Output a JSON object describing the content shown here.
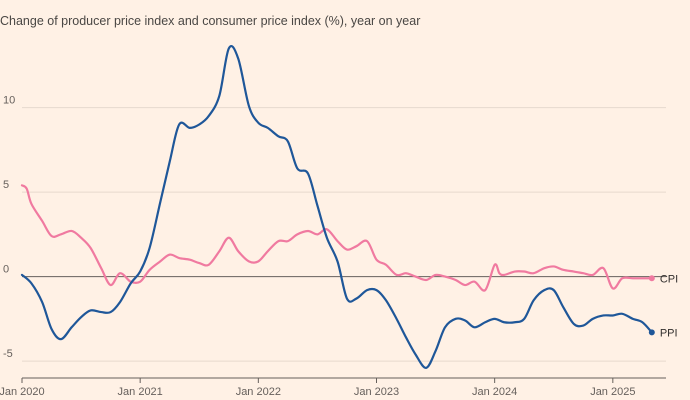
{
  "chart_data": {
    "type": "line",
    "subtitle": "Change of producer price index and consumer price index (%), year on year",
    "ylim": [
      -6,
      14
    ],
    "yticks": [
      10,
      5,
      0,
      -5
    ],
    "ytick_labels": [
      "10",
      "5",
      "0",
      "-5"
    ],
    "xlim": [
      2020.0,
      2025.45
    ],
    "xticks": [
      2020.0,
      2021.0,
      2022.0,
      2023.0,
      2024.0,
      2025.0
    ],
    "xtick_labels": [
      "Jan 2020",
      "Jan 2021",
      "Jan 2022",
      "Jan 2023",
      "Jan 2024",
      "Jan 2025"
    ],
    "grid": "horizontal",
    "legend": "end-of-line labels",
    "colors": {
      "background": "#fff1e5",
      "CPI": "#f07aa0",
      "PPI": "#1f5799",
      "grid": "#e6d9ce",
      "zero_line": "#66605c"
    },
    "series": [
      {
        "name": "CPI",
        "x": [
          2020.0,
          2020.04,
          2020.08,
          2020.17,
          2020.25,
          2020.33,
          2020.42,
          2020.5,
          2020.58,
          2020.67,
          2020.75,
          2020.83,
          2020.92,
          2021.0,
          2021.08,
          2021.17,
          2021.25,
          2021.33,
          2021.42,
          2021.5,
          2021.58,
          2021.67,
          2021.75,
          2021.83,
          2021.92,
          2022.0,
          2022.08,
          2022.17,
          2022.25,
          2022.33,
          2022.42,
          2022.5,
          2022.58,
          2022.67,
          2022.75,
          2022.83,
          2022.92,
          2023.0,
          2023.08,
          2023.17,
          2023.25,
          2023.33,
          2023.42,
          2023.5,
          2023.58,
          2023.67,
          2023.75,
          2023.83,
          2023.92,
          2024.0,
          2024.04,
          2024.08,
          2024.17,
          2024.25,
          2024.33,
          2024.42,
          2024.5,
          2024.58,
          2024.67,
          2024.75,
          2024.83,
          2024.92,
          2025.0,
          2025.08,
          2025.17,
          2025.25,
          2025.33
        ],
        "values": [
          5.4,
          5.2,
          4.3,
          3.3,
          2.4,
          2.5,
          2.7,
          2.3,
          1.7,
          0.5,
          -0.5,
          0.2,
          -0.3,
          -0.3,
          0.4,
          0.9,
          1.3,
          1.1,
          1.0,
          0.8,
          0.7,
          1.5,
          2.3,
          1.5,
          0.9,
          0.9,
          1.5,
          2.1,
          2.1,
          2.5,
          2.7,
          2.5,
          2.8,
          2.1,
          1.6,
          1.8,
          2.1,
          1.0,
          0.7,
          0.1,
          0.2,
          0.0,
          -0.2,
          0.1,
          0.0,
          -0.2,
          -0.5,
          -0.3,
          -0.8,
          0.7,
          0.2,
          0.1,
          0.3,
          0.3,
          0.2,
          0.5,
          0.6,
          0.4,
          0.3,
          0.2,
          0.1,
          0.5,
          -0.7,
          -0.1,
          -0.1,
          -0.1,
          -0.1
        ],
        "end_label": "CPI"
      },
      {
        "name": "PPI",
        "x": [
          2020.0,
          2020.08,
          2020.17,
          2020.25,
          2020.33,
          2020.42,
          2020.5,
          2020.58,
          2020.67,
          2020.75,
          2020.83,
          2020.92,
          2021.0,
          2021.08,
          2021.17,
          2021.25,
          2021.33,
          2021.42,
          2021.5,
          2021.58,
          2021.67,
          2021.75,
          2021.83,
          2021.92,
          2022.0,
          2022.08,
          2022.17,
          2022.25,
          2022.33,
          2022.42,
          2022.5,
          2022.58,
          2022.67,
          2022.75,
          2022.83,
          2022.92,
          2023.0,
          2023.08,
          2023.17,
          2023.25,
          2023.33,
          2023.42,
          2023.5,
          2023.58,
          2023.67,
          2023.75,
          2023.83,
          2023.92,
          2024.0,
          2024.08,
          2024.17,
          2024.25,
          2024.33,
          2024.42,
          2024.5,
          2024.58,
          2024.67,
          2024.75,
          2024.83,
          2024.92,
          2025.0,
          2025.08,
          2025.17,
          2025.25,
          2025.33
        ],
        "values": [
          0.1,
          -0.4,
          -1.5,
          -3.1,
          -3.7,
          -3.0,
          -2.4,
          -2.0,
          -2.1,
          -2.1,
          -1.5,
          -0.4,
          0.3,
          1.7,
          4.4,
          6.8,
          9.0,
          8.8,
          9.0,
          9.5,
          10.7,
          13.5,
          12.9,
          10.1,
          9.1,
          8.8,
          8.3,
          8.0,
          6.4,
          6.1,
          4.2,
          2.3,
          0.9,
          -1.3,
          -1.3,
          -0.8,
          -0.8,
          -1.4,
          -2.5,
          -3.6,
          -4.6,
          -5.4,
          -4.4,
          -3.0,
          -2.5,
          -2.6,
          -3.0,
          -2.7,
          -2.5,
          -2.7,
          -2.7,
          -2.5,
          -1.4,
          -0.8,
          -0.8,
          -1.8,
          -2.8,
          -2.9,
          -2.5,
          -2.3,
          -2.3,
          -2.2,
          -2.5,
          -2.7,
          -3.3
        ],
        "end_label": "PPI"
      }
    ]
  }
}
